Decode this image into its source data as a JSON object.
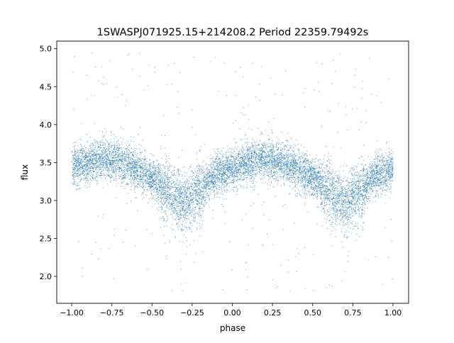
{
  "chart_data": {
    "type": "scatter",
    "title": "1SWASPJ071925.15+214208.2 Period 22359.79492s",
    "xlabel": "phase",
    "ylabel": "flux",
    "xlim": [
      -1.093,
      1.097
    ],
    "ylim": [
      1.645,
      5.1
    ],
    "x_ticks": [
      -1.0,
      -0.75,
      -0.5,
      -0.25,
      0.0,
      0.25,
      0.5,
      0.75,
      1.0
    ],
    "x_tick_labels": [
      "−1.00",
      "−0.75",
      "−0.50",
      "−0.25",
      "0.00",
      "0.25",
      "0.50",
      "0.75",
      "1.00"
    ],
    "y_ticks": [
      2.0,
      2.5,
      3.0,
      3.5,
      4.0,
      4.5,
      5.0
    ],
    "y_tick_labels": [
      "2.0",
      "2.5",
      "3.0",
      "3.5",
      "4.0",
      "4.5",
      "5.0"
    ],
    "grid": false,
    "color": "#1f77b4",
    "phase_binned_mean_flux": {
      "phase": [
        -1.0,
        -0.9,
        -0.8,
        -0.7,
        -0.6,
        -0.5,
        -0.4,
        -0.3,
        -0.2,
        -0.1,
        0.0,
        0.1,
        0.2,
        0.3,
        0.4,
        0.5,
        0.6,
        0.7,
        0.8,
        0.9,
        1.0
      ],
      "flux": [
        3.45,
        3.5,
        3.55,
        3.52,
        3.42,
        3.3,
        3.12,
        2.95,
        3.15,
        3.35,
        3.42,
        3.5,
        3.55,
        3.52,
        3.42,
        3.3,
        3.12,
        2.95,
        3.15,
        3.35,
        3.42
      ]
    },
    "flux_scatter_sigma": 0.13,
    "outlier_range": [
      1.8,
      5.0
    ]
  }
}
